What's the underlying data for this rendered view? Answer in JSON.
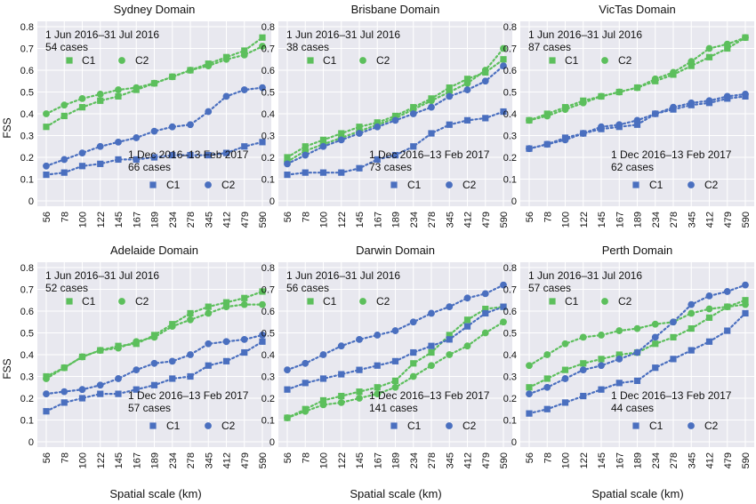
{
  "figure": {
    "ylabel": "FSS",
    "xlabel": "Spatial scale (km)",
    "colors": {
      "green": "#5cbf5c",
      "blue": "#4a6fbf",
      "panel": "#e8e8ef"
    }
  },
  "chart_data": [
    {
      "type": "line",
      "title": "Sydney Domain",
      "categories": [
        "56",
        "78",
        "100",
        "122",
        "145",
        "167",
        "189",
        "234",
        "278",
        "345",
        "412",
        "479",
        "590"
      ],
      "ylim": [
        0,
        0.8
      ],
      "yticks": [
        "0",
        "0.1",
        "0.2",
        "0.3",
        "0.4",
        "0.5",
        "0.6",
        "0.7",
        "0.8"
      ],
      "winter": {
        "period": "1 Jun 2016–31 Jul 2016",
        "cases": "54 cases"
      },
      "summer": {
        "period": "1 Dec 2016–13 Feb 2017",
        "cases": "66 cases"
      },
      "legend": [
        "C1",
        "C2"
      ],
      "series": [
        {
          "name": "C1",
          "period": "winter",
          "color": "green",
          "marker": "square",
          "values": [
            0.34,
            0.39,
            0.43,
            0.46,
            0.48,
            0.51,
            0.54,
            0.57,
            0.6,
            0.63,
            0.66,
            0.69,
            0.75
          ]
        },
        {
          "name": "C2",
          "period": "winter",
          "color": "green",
          "marker": "circle",
          "values": [
            0.4,
            0.44,
            0.47,
            0.49,
            0.51,
            0.52,
            0.54,
            0.57,
            0.6,
            0.62,
            0.65,
            0.67,
            0.71
          ]
        },
        {
          "name": "C1",
          "period": "summer",
          "color": "blue",
          "marker": "square",
          "values": [
            0.12,
            0.13,
            0.16,
            0.17,
            0.19,
            0.19,
            0.2,
            0.21,
            0.21,
            0.21,
            0.22,
            0.25,
            0.27
          ]
        },
        {
          "name": "C2",
          "period": "summer",
          "color": "blue",
          "marker": "circle",
          "values": [
            0.16,
            0.19,
            0.22,
            0.25,
            0.27,
            0.29,
            0.32,
            0.34,
            0.35,
            0.41,
            0.48,
            0.51,
            0.52
          ]
        }
      ]
    },
    {
      "type": "line",
      "title": "Brisbane Domain",
      "categories": [
        "56",
        "78",
        "100",
        "122",
        "145",
        "167",
        "189",
        "234",
        "278",
        "345",
        "412",
        "479",
        "590"
      ],
      "ylim": [
        0,
        0.8
      ],
      "yticks": [
        "0",
        "0.1",
        "0.2",
        "0.3",
        "0.4",
        "0.5",
        "0.6",
        "0.7",
        "0.8"
      ],
      "winter": {
        "period": "1 Jun 2016–31 Jul 2016",
        "cases": "38 cases"
      },
      "summer": {
        "period": "1 Dec 2016–13 Feb 2017",
        "cases": "73 cases"
      },
      "legend": [
        "C1",
        "C2"
      ],
      "series": [
        {
          "name": "C1",
          "period": "winter",
          "color": "green",
          "marker": "square",
          "values": [
            0.2,
            0.25,
            0.28,
            0.31,
            0.34,
            0.36,
            0.39,
            0.43,
            0.47,
            0.52,
            0.56,
            0.59,
            0.65
          ]
        },
        {
          "name": "C2",
          "period": "winter",
          "color": "green",
          "marker": "circle",
          "values": [
            0.18,
            0.23,
            0.26,
            0.29,
            0.32,
            0.35,
            0.38,
            0.42,
            0.46,
            0.5,
            0.54,
            0.6,
            0.7
          ]
        },
        {
          "name": "C1",
          "period": "summer",
          "color": "blue",
          "marker": "square",
          "values": [
            0.12,
            0.13,
            0.13,
            0.13,
            0.15,
            0.19,
            0.21,
            0.25,
            0.31,
            0.35,
            0.37,
            0.38,
            0.41
          ]
        },
        {
          "name": "C2",
          "period": "summer",
          "color": "blue",
          "marker": "circle",
          "values": [
            0.17,
            0.21,
            0.25,
            0.28,
            0.31,
            0.34,
            0.37,
            0.4,
            0.43,
            0.48,
            0.51,
            0.55,
            0.62
          ]
        }
      ]
    },
    {
      "type": "line",
      "title": "VicTas Domain",
      "categories": [
        "56",
        "78",
        "100",
        "122",
        "145",
        "167",
        "189",
        "234",
        "278",
        "345",
        "412",
        "479",
        "590"
      ],
      "ylim": [
        0,
        0.8
      ],
      "yticks": [
        "0",
        "0.1",
        "0.2",
        "0.3",
        "0.4",
        "0.5",
        "0.6",
        "0.7",
        "0.8"
      ],
      "winter": {
        "period": "1 Jun 2016–31 Jul 2016",
        "cases": "87 cases"
      },
      "summer": {
        "period": "1 Dec 2016–13 Feb 2017",
        "cases": "62 cases"
      },
      "legend": [
        "C1",
        "C2"
      ],
      "series": [
        {
          "name": "C1",
          "period": "winter",
          "color": "green",
          "marker": "square",
          "values": [
            0.37,
            0.4,
            0.43,
            0.46,
            0.48,
            0.5,
            0.52,
            0.55,
            0.58,
            0.62,
            0.66,
            0.7,
            0.75
          ]
        },
        {
          "name": "C2",
          "period": "winter",
          "color": "green",
          "marker": "circle",
          "values": [
            0.37,
            0.39,
            0.42,
            0.45,
            0.48,
            0.5,
            0.52,
            0.56,
            0.59,
            0.64,
            0.7,
            0.72,
            0.75
          ]
        },
        {
          "name": "C1",
          "period": "summer",
          "color": "blue",
          "marker": "square",
          "values": [
            0.24,
            0.26,
            0.29,
            0.31,
            0.33,
            0.34,
            0.35,
            0.4,
            0.42,
            0.44,
            0.45,
            0.47,
            0.48
          ]
        },
        {
          "name": "C2",
          "period": "summer",
          "color": "blue",
          "marker": "circle",
          "values": [
            0.24,
            0.26,
            0.28,
            0.31,
            0.34,
            0.35,
            0.37,
            0.4,
            0.43,
            0.45,
            0.46,
            0.48,
            0.49
          ]
        }
      ]
    },
    {
      "type": "line",
      "title": "Adelaide Domain",
      "categories": [
        "56",
        "78",
        "100",
        "122",
        "145",
        "167",
        "189",
        "234",
        "278",
        "345",
        "412",
        "479",
        "590"
      ],
      "ylim": [
        0,
        0.8
      ],
      "yticks": [
        "0",
        "0.1",
        "0.2",
        "0.3",
        "0.4",
        "0.5",
        "0.6",
        "0.7",
        "0.8"
      ],
      "winter": {
        "period": "1 Jun 2016–31 Jul 2016",
        "cases": "52 cases"
      },
      "summer": {
        "period": "1 Dec 2016–13 Feb 2017",
        "cases": "57 cases"
      },
      "legend": [
        "C1",
        "C2"
      ],
      "series": [
        {
          "name": "C1",
          "period": "winter",
          "color": "green",
          "marker": "square",
          "values": [
            0.3,
            0.34,
            0.39,
            0.42,
            0.44,
            0.45,
            0.49,
            0.54,
            0.59,
            0.62,
            0.64,
            0.66,
            0.69
          ]
        },
        {
          "name": "C2",
          "period": "winter",
          "color": "green",
          "marker": "circle",
          "values": [
            0.29,
            0.34,
            0.39,
            0.42,
            0.43,
            0.46,
            0.48,
            0.53,
            0.56,
            0.59,
            0.62,
            0.63,
            0.63
          ]
        },
        {
          "name": "C1",
          "period": "summer",
          "color": "blue",
          "marker": "square",
          "values": [
            0.14,
            0.18,
            0.2,
            0.22,
            0.22,
            0.24,
            0.26,
            0.29,
            0.3,
            0.35,
            0.37,
            0.41,
            0.46
          ]
        },
        {
          "name": "C2",
          "period": "summer",
          "color": "blue",
          "marker": "circle",
          "values": [
            0.22,
            0.23,
            0.24,
            0.26,
            0.29,
            0.33,
            0.36,
            0.37,
            0.4,
            0.45,
            0.46,
            0.47,
            0.49
          ]
        }
      ]
    },
    {
      "type": "line",
      "title": "Darwin Domain",
      "categories": [
        "56",
        "78",
        "100",
        "122",
        "145",
        "167",
        "189",
        "234",
        "278",
        "345",
        "412",
        "479",
        "590"
      ],
      "ylim": [
        0,
        0.8
      ],
      "yticks": [
        "0",
        "0.1",
        "0.2",
        "0.3",
        "0.4",
        "0.5",
        "0.6",
        "0.7",
        "0.8"
      ],
      "winter": {
        "period": "1 Jun 2016–31 Jul 2016",
        "cases": "56 cases"
      },
      "summer": {
        "period": "1 Dec 2016–13 Feb 2017",
        "cases": "141 cases"
      },
      "legend": [
        "C1",
        "C2"
      ],
      "series": [
        {
          "name": "C1",
          "period": "winter",
          "color": "green",
          "marker": "square",
          "values": [
            0.11,
            0.15,
            0.19,
            0.21,
            0.23,
            0.25,
            0.28,
            0.36,
            0.41,
            0.49,
            0.56,
            0.61,
            0.62
          ]
        },
        {
          "name": "C2",
          "period": "winter",
          "color": "green",
          "marker": "circle",
          "values": [
            0.11,
            0.14,
            0.17,
            0.18,
            0.2,
            0.22,
            0.25,
            0.3,
            0.35,
            0.4,
            0.44,
            0.5,
            0.55
          ]
        },
        {
          "name": "C1",
          "period": "summer",
          "color": "blue",
          "marker": "square",
          "values": [
            0.24,
            0.27,
            0.29,
            0.31,
            0.33,
            0.35,
            0.37,
            0.41,
            0.44,
            0.47,
            0.53,
            0.59,
            0.62
          ]
        },
        {
          "name": "C2",
          "period": "summer",
          "color": "blue",
          "marker": "circle",
          "values": [
            0.33,
            0.36,
            0.4,
            0.44,
            0.47,
            0.49,
            0.51,
            0.55,
            0.59,
            0.62,
            0.66,
            0.68,
            0.72
          ]
        }
      ]
    },
    {
      "type": "line",
      "title": "Perth Domain",
      "categories": [
        "56",
        "78",
        "100",
        "122",
        "145",
        "167",
        "189",
        "234",
        "278",
        "345",
        "412",
        "479",
        "590"
      ],
      "ylim": [
        0,
        0.8
      ],
      "yticks": [
        "0",
        "0.1",
        "0.2",
        "0.3",
        "0.4",
        "0.5",
        "0.6",
        "0.7",
        "0.8"
      ],
      "winter": {
        "period": "1 Jun 2016–31 Jul 2016",
        "cases": "57 cases"
      },
      "summer": {
        "period": "1 Dec 2016–13 Feb 2017",
        "cases": "44 cases"
      },
      "legend": [
        "C1",
        "C2"
      ],
      "series": [
        {
          "name": "C1",
          "period": "winter",
          "color": "green",
          "marker": "square",
          "values": [
            0.25,
            0.29,
            0.33,
            0.36,
            0.38,
            0.4,
            0.41,
            0.45,
            0.48,
            0.52,
            0.57,
            0.62,
            0.65
          ]
        },
        {
          "name": "C2",
          "period": "winter",
          "color": "green",
          "marker": "circle",
          "values": [
            0.35,
            0.4,
            0.45,
            0.48,
            0.49,
            0.51,
            0.52,
            0.54,
            0.55,
            0.59,
            0.61,
            0.62,
            0.63
          ]
        },
        {
          "name": "C1",
          "period": "summer",
          "color": "blue",
          "marker": "square",
          "values": [
            0.13,
            0.15,
            0.18,
            0.21,
            0.24,
            0.27,
            0.28,
            0.34,
            0.38,
            0.42,
            0.46,
            0.51,
            0.59
          ]
        },
        {
          "name": "C2",
          "period": "summer",
          "color": "blue",
          "marker": "circle",
          "values": [
            0.22,
            0.25,
            0.29,
            0.33,
            0.35,
            0.38,
            0.41,
            0.48,
            0.55,
            0.63,
            0.67,
            0.69,
            0.72
          ]
        }
      ]
    }
  ]
}
